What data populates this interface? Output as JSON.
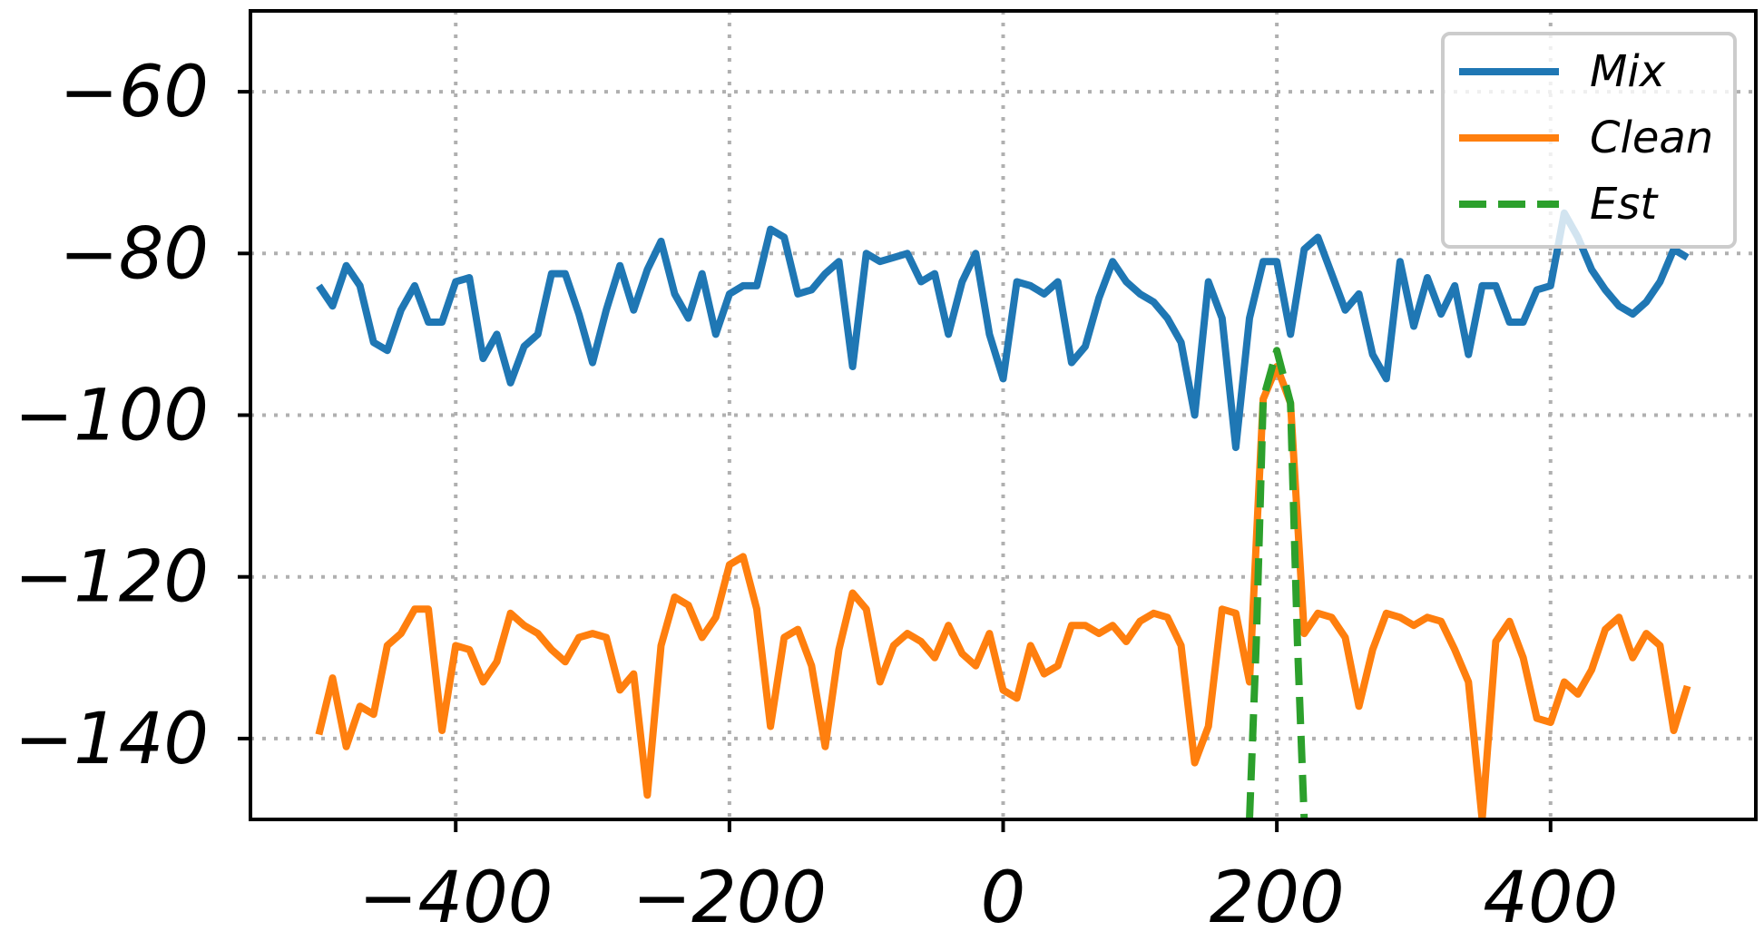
{
  "chart_data": {
    "type": "line",
    "title": "",
    "xlabel": "",
    "ylabel": "",
    "xlim": [
      -550,
      550
    ],
    "ylim": [
      -150,
      -50
    ],
    "xticks": [
      -400,
      -200,
      0,
      200,
      400
    ],
    "yticks": [
      -60,
      -80,
      -100,
      -120,
      -140
    ],
    "xtick_labels": [
      "−400",
      "−200",
      "0",
      "200",
      "400"
    ],
    "ytick_labels": [
      "−60",
      "−80",
      "−100",
      "−120",
      "−140"
    ],
    "grid": true,
    "legend_position": "upper right",
    "series": [
      {
        "name": "Mix",
        "color": "#1f77b4",
        "style": "solid",
        "x": [
          -500,
          -490,
          -480,
          -470,
          -460,
          -450,
          -440,
          -430,
          -420,
          -410,
          -400,
          -390,
          -380,
          -370,
          -360,
          -350,
          -340,
          -330,
          -320,
          -310,
          -300,
          -290,
          -280,
          -270,
          -260,
          -250,
          -240,
          -230,
          -220,
          -210,
          -200,
          -190,
          -180,
          -170,
          -160,
          -150,
          -140,
          -130,
          -120,
          -110,
          -100,
          -90,
          -80,
          -70,
          -60,
          -50,
          -40,
          -30,
          -20,
          -10,
          0,
          10,
          20,
          30,
          40,
          50,
          60,
          70,
          80,
          90,
          100,
          110,
          120,
          130,
          140,
          150,
          160,
          170,
          180,
          190,
          200,
          210,
          220,
          230,
          240,
          250,
          260,
          270,
          280,
          290,
          300,
          310,
          320,
          330,
          340,
          350,
          360,
          370,
          380,
          390,
          400,
          410,
          420,
          430,
          440,
          450,
          460,
          470,
          480,
          490,
          500
        ],
        "y": [
          -84,
          -86.5,
          -81.5,
          -84,
          -91,
          -92,
          -87,
          -84,
          -88.5,
          -88.5,
          -83.5,
          -83,
          -93,
          -90,
          -96,
          -91.5,
          -90,
          -82.5,
          -82.5,
          -87.5,
          -93.5,
          -87,
          -81.5,
          -87,
          -82,
          -78.5,
          -85,
          -88,
          -82.5,
          -90,
          -85,
          -84,
          -84,
          -77,
          -78,
          -85,
          -84.5,
          -82.5,
          -81,
          -94,
          -80,
          -81,
          -80.5,
          -80,
          -83.5,
          -82.5,
          -90,
          -83.5,
          -80,
          -90,
          -95.5,
          -83.5,
          -84,
          -85,
          -83.5,
          -93.5,
          -91.5,
          -85.5,
          -81,
          -83.5,
          -85,
          -86,
          -88,
          -91,
          -100,
          -83.5,
          -88,
          -104,
          -88,
          -81,
          -81,
          -90,
          -79.5,
          -78,
          -82.5,
          -87,
          -85,
          -92.5,
          -95.5,
          -81,
          -89,
          -83,
          -87.5,
          -84,
          -92.5,
          -84,
          -84,
          -88.5,
          -88.5,
          -84.5,
          -84,
          -75,
          -78,
          -82,
          -84.5,
          -86.5,
          -87.5,
          -86,
          -83.5,
          -79.5,
          -80.5
        ]
      },
      {
        "name": "Clean",
        "color": "#ff7f0e",
        "style": "solid",
        "x": [
          -500,
          -490,
          -480,
          -470,
          -460,
          -450,
          -440,
          -430,
          -420,
          -410,
          -400,
          -390,
          -380,
          -370,
          -360,
          -350,
          -340,
          -330,
          -320,
          -310,
          -300,
          -290,
          -280,
          -270,
          -260,
          -250,
          -240,
          -230,
          -220,
          -210,
          -200,
          -190,
          -180,
          -170,
          -160,
          -150,
          -140,
          -130,
          -120,
          -110,
          -100,
          -90,
          -80,
          -70,
          -60,
          -50,
          -40,
          -30,
          -20,
          -10,
          0,
          10,
          20,
          30,
          40,
          50,
          60,
          70,
          80,
          90,
          100,
          110,
          120,
          130,
          140,
          150,
          160,
          170,
          180,
          190,
          200,
          210,
          220,
          230,
          240,
          250,
          260,
          270,
          280,
          290,
          300,
          310,
          320,
          330,
          340,
          350,
          360,
          370,
          380,
          390,
          400,
          410,
          420,
          430,
          440,
          450,
          460,
          470,
          480,
          490,
          500
        ],
        "y": [
          -139.5,
          -132.5,
          -141,
          -136,
          -137,
          -128.5,
          -127,
          -124,
          -124,
          -139,
          -128.5,
          -129,
          -133,
          -130.5,
          -124.5,
          -126,
          -127,
          -129,
          -130.5,
          -127.5,
          -127,
          -127.5,
          -134,
          -132,
          -147,
          -128.5,
          -122.5,
          -123.5,
          -127.5,
          -125,
          -118.5,
          -117.5,
          -124,
          -138.5,
          -127.5,
          -126.5,
          -131,
          -141,
          -129,
          -122,
          -124,
          -133,
          -128.5,
          -127,
          -128,
          -130,
          -126,
          -129.5,
          -131,
          -127,
          -134,
          -135,
          -128.5,
          -132,
          -131,
          -126,
          -126,
          -127,
          -126,
          -128,
          -125.5,
          -124.5,
          -125,
          -128.5,
          -143,
          -138.5,
          -124,
          -124.5,
          -133,
          -98,
          -94,
          -98.5,
          -127,
          -124.5,
          -125,
          -127.5,
          -136,
          -129,
          -124.5,
          -125,
          -126,
          -125,
          -125.5,
          -129,
          -133,
          -150,
          -128,
          -125.5,
          -130,
          -137.5,
          -138,
          -133,
          -134.5,
          -131.5,
          -126.5,
          -125,
          -130,
          -127,
          -128.5,
          -139,
          -133.5
        ]
      },
      {
        "name": "Est",
        "color": "#2ca02c",
        "style": "dashed",
        "x": [
          180,
          185,
          190,
          200,
          210,
          215,
          220
        ],
        "y": [
          -150,
          -128,
          -98,
          -92,
          -98.5,
          -128,
          -150
        ]
      }
    ]
  }
}
